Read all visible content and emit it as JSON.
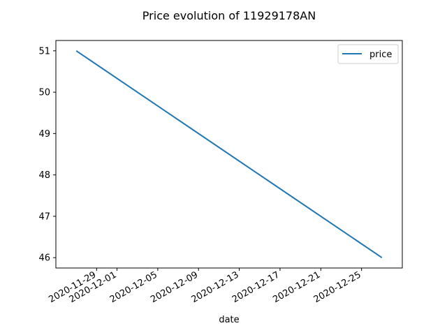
{
  "chart_data": {
    "type": "line",
    "title": "Price evolution of 11929178AN",
    "xlabel": "date",
    "ylabel": "",
    "x": [
      "2020-11-27",
      "2020-12-27"
    ],
    "series": [
      {
        "name": "price",
        "values": [
          51,
          46
        ]
      }
    ],
    "xlim": [
      "2020-11-25",
      "2020-12-29"
    ],
    "ylim": [
      45.75,
      51.25
    ],
    "x_ticks": [
      "2020-11-29",
      "2020-12-01",
      "2020-12-05",
      "2020-12-09",
      "2020-12-13",
      "2020-12-17",
      "2020-12-21",
      "2020-12-25"
    ],
    "y_ticks": [
      46,
      47,
      48,
      49,
      50,
      51
    ],
    "grid": false,
    "legend_position": "top-right",
    "line_color": "#1f77b4"
  }
}
